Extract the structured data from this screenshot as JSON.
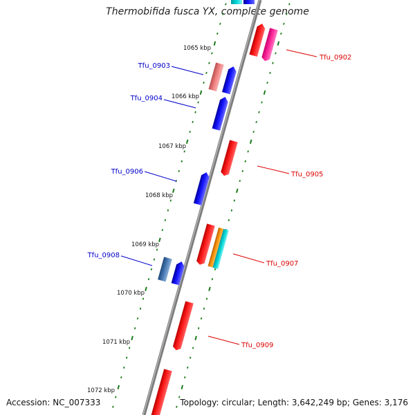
{
  "title": "Thermobifida fusca YX, complete genome",
  "accession": "Accession: NC_007333",
  "stats": "Topology: circular; Length: 3,642,249 bp; Genes: 3,176",
  "colors": {
    "backbone": "#7d7d7d",
    "tick": "#1a7a1a",
    "forward_label": "#0000cc",
    "reverse_label": "#dd0000"
  },
  "kbp_marks": [
    "1065 kbp",
    "1066 kbp",
    "1067 kbp",
    "1068 kbp",
    "1069 kbp",
    "1070 kbp",
    "1071 kbp",
    "1072 kbp"
  ],
  "genes": [
    {
      "label": "Tfu_0902",
      "strand": "reverse"
    },
    {
      "label": "Tfu_0903",
      "strand": "forward"
    },
    {
      "label": "Tfu_0904",
      "strand": "forward"
    },
    {
      "label": "Tfu_0905",
      "strand": "reverse"
    },
    {
      "label": "Tfu_0906",
      "strand": "forward"
    },
    {
      "label": "Tfu_0907",
      "strand": "reverse"
    },
    {
      "label": "Tfu_0908",
      "strand": "forward"
    },
    {
      "label": "Tfu_0909",
      "strand": "reverse"
    }
  ]
}
